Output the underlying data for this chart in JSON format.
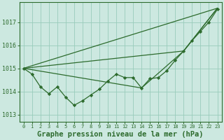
{
  "bg_color": "#cce8e0",
  "grid_color": "#99ccbb",
  "line_color": "#2d6b2d",
  "marker_color": "#2d6b2d",
  "xlabel": "Graphe pression niveau de la mer (hPa)",
  "ylim": [
    1012.7,
    1017.85
  ],
  "xlim": [
    -0.5,
    23.5
  ],
  "yticks": [
    1013,
    1014,
    1015,
    1016,
    1017
  ],
  "xticks": [
    0,
    1,
    2,
    3,
    4,
    5,
    6,
    7,
    8,
    9,
    10,
    11,
    12,
    13,
    14,
    15,
    16,
    17,
    18,
    19,
    20,
    21,
    22,
    23
  ],
  "series1_x": [
    0,
    1,
    2,
    3,
    4,
    5,
    6,
    7,
    8,
    9,
    10,
    11,
    12,
    13,
    14,
    15,
    16,
    17,
    18,
    19,
    20,
    21,
    22,
    23
  ],
  "series1_y": [
    1015.0,
    1014.75,
    1014.2,
    1013.9,
    1014.2,
    1013.75,
    1013.4,
    1013.6,
    1013.85,
    1014.1,
    1014.45,
    1014.75,
    1014.6,
    1014.6,
    1014.15,
    1014.55,
    1014.6,
    1014.9,
    1015.35,
    1015.75,
    1016.2,
    1016.6,
    1017.0,
    1017.55
  ],
  "series2_x": [
    0,
    23
  ],
  "series2_y": [
    1015.0,
    1017.6
  ],
  "series3_x": [
    0,
    19,
    23
  ],
  "series3_y": [
    1015.0,
    1015.75,
    1017.6
  ],
  "series4_x": [
    0,
    14,
    19,
    23
  ],
  "series4_y": [
    1015.0,
    1014.15,
    1015.75,
    1017.6
  ],
  "xlabel_fontsize": 7.5
}
